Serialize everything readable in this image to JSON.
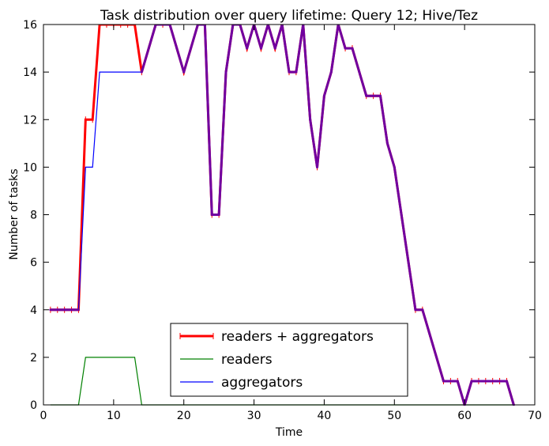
{
  "chart_data": {
    "type": "line",
    "title": "Task distribution over query lifetime: Query 12; Hive/Tez",
    "xlabel": "Time",
    "ylabel": "Number of tasks",
    "xlim": [
      0,
      70
    ],
    "ylim": [
      0,
      16
    ],
    "xticks": [
      0,
      10,
      20,
      30,
      40,
      50,
      60,
      70
    ],
    "yticks": [
      0,
      2,
      4,
      6,
      8,
      10,
      12,
      14,
      16
    ],
    "grid": false,
    "legend_position": "lower-center",
    "series": [
      {
        "name": "readers + aggregators",
        "color": "#ff0000",
        "points": [
          [
            1,
            4
          ],
          [
            2,
            4
          ],
          [
            3,
            4
          ],
          [
            4,
            4
          ],
          [
            5,
            4
          ],
          [
            6,
            12
          ],
          [
            7,
            12
          ],
          [
            8,
            16
          ],
          [
            9,
            16
          ],
          [
            10,
            16
          ],
          [
            11,
            16
          ],
          [
            12,
            16
          ],
          [
            13,
            16
          ],
          [
            14,
            14
          ],
          [
            15,
            15
          ],
          [
            16,
            16
          ],
          [
            17,
            16
          ],
          [
            18,
            16
          ],
          [
            19,
            15
          ],
          [
            20,
            14
          ],
          [
            21,
            15
          ],
          [
            22,
            16
          ],
          [
            23,
            16
          ],
          [
            24,
            8
          ],
          [
            25,
            8
          ],
          [
            26,
            14
          ],
          [
            27,
            16
          ],
          [
            28,
            16
          ],
          [
            29,
            15
          ],
          [
            30,
            16
          ],
          [
            31,
            15
          ],
          [
            32,
            16
          ],
          [
            33,
            15
          ],
          [
            34,
            16
          ],
          [
            35,
            14
          ],
          [
            36,
            14
          ],
          [
            37,
            16
          ],
          [
            38,
            12
          ],
          [
            39,
            10
          ],
          [
            40,
            13
          ],
          [
            41,
            14
          ],
          [
            42,
            16
          ],
          [
            43,
            15
          ],
          [
            44,
            15
          ],
          [
            45,
            14
          ],
          [
            46,
            13
          ],
          [
            47,
            13
          ],
          [
            48,
            13
          ],
          [
            49,
            11
          ],
          [
            50,
            10
          ],
          [
            51,
            8
          ],
          [
            52,
            6
          ],
          [
            53,
            4
          ],
          [
            54,
            4
          ],
          [
            55,
            3
          ],
          [
            56,
            2
          ],
          [
            57,
            1
          ],
          [
            58,
            1
          ],
          [
            59,
            1
          ],
          [
            60,
            0
          ],
          [
            61,
            1
          ],
          [
            62,
            1
          ],
          [
            63,
            1
          ],
          [
            64,
            1
          ],
          [
            65,
            1
          ],
          [
            66,
            1
          ],
          [
            67,
            0
          ]
        ]
      },
      {
        "name": "readers",
        "color": "#008000",
        "points": [
          [
            1,
            0
          ],
          [
            2,
            0
          ],
          [
            3,
            0
          ],
          [
            4,
            0
          ],
          [
            5,
            0
          ],
          [
            6,
            2
          ],
          [
            7,
            2
          ],
          [
            8,
            2
          ],
          [
            9,
            2
          ],
          [
            10,
            2
          ],
          [
            11,
            2
          ],
          [
            12,
            2
          ],
          [
            13,
            2
          ],
          [
            14,
            0
          ],
          [
            15,
            0
          ],
          [
            16,
            0
          ],
          [
            17,
            0
          ],
          [
            18,
            0
          ],
          [
            19,
            0
          ],
          [
            20,
            0
          ],
          [
            21,
            0
          ],
          [
            22,
            0
          ],
          [
            23,
            0
          ],
          [
            24,
            0
          ],
          [
            25,
            0
          ],
          [
            26,
            0
          ],
          [
            27,
            0
          ],
          [
            28,
            0
          ],
          [
            29,
            0
          ],
          [
            30,
            0
          ],
          [
            31,
            0
          ],
          [
            32,
            0
          ],
          [
            33,
            0
          ],
          [
            34,
            0
          ],
          [
            35,
            0
          ],
          [
            36,
            0
          ],
          [
            37,
            0
          ],
          [
            38,
            0
          ],
          [
            39,
            0
          ],
          [
            40,
            0
          ],
          [
            41,
            0
          ],
          [
            42,
            0
          ],
          [
            43,
            0
          ],
          [
            44,
            0
          ],
          [
            45,
            0
          ],
          [
            46,
            0
          ],
          [
            47,
            0
          ],
          [
            48,
            0
          ],
          [
            49,
            0
          ],
          [
            50,
            0
          ],
          [
            51,
            0
          ],
          [
            52,
            0
          ],
          [
            53,
            0
          ],
          [
            54,
            0
          ],
          [
            55,
            0
          ],
          [
            56,
            0
          ],
          [
            57,
            0
          ],
          [
            58,
            0
          ],
          [
            59,
            0
          ],
          [
            60,
            0
          ],
          [
            61,
            0
          ],
          [
            62,
            0
          ],
          [
            63,
            0
          ],
          [
            64,
            0
          ],
          [
            65,
            0
          ],
          [
            66,
            0
          ],
          [
            67,
            0
          ]
        ]
      },
      {
        "name": "aggregators",
        "color": "#0000ff",
        "points": [
          [
            1,
            4
          ],
          [
            2,
            4
          ],
          [
            3,
            4
          ],
          [
            4,
            4
          ],
          [
            5,
            4
          ],
          [
            6,
            10
          ],
          [
            7,
            10
          ],
          [
            8,
            14
          ],
          [
            9,
            14
          ],
          [
            10,
            14
          ],
          [
            11,
            14
          ],
          [
            12,
            14
          ],
          [
            13,
            14
          ],
          [
            14,
            14
          ],
          [
            15,
            15
          ],
          [
            16,
            16
          ],
          [
            17,
            16
          ],
          [
            18,
            16
          ],
          [
            19,
            15
          ],
          [
            20,
            14
          ],
          [
            21,
            15
          ],
          [
            22,
            16
          ],
          [
            23,
            16
          ],
          [
            24,
            8
          ],
          [
            25,
            8
          ],
          [
            26,
            14
          ],
          [
            27,
            16
          ],
          [
            28,
            16
          ],
          [
            29,
            15
          ],
          [
            30,
            16
          ],
          [
            31,
            15
          ],
          [
            32,
            16
          ],
          [
            33,
            15
          ],
          [
            34,
            16
          ],
          [
            35,
            14
          ],
          [
            36,
            14
          ],
          [
            37,
            16
          ],
          [
            38,
            12
          ],
          [
            39,
            10
          ],
          [
            40,
            13
          ],
          [
            41,
            14
          ],
          [
            42,
            16
          ],
          [
            43,
            15
          ],
          [
            44,
            15
          ],
          [
            45,
            14
          ],
          [
            46,
            13
          ],
          [
            47,
            13
          ],
          [
            48,
            13
          ],
          [
            49,
            11
          ],
          [
            50,
            10
          ],
          [
            51,
            8
          ],
          [
            52,
            6
          ],
          [
            53,
            4
          ],
          [
            54,
            4
          ],
          [
            55,
            3
          ],
          [
            56,
            2
          ],
          [
            57,
            1
          ],
          [
            58,
            1
          ],
          [
            59,
            1
          ],
          [
            60,
            0
          ],
          [
            61,
            1
          ],
          [
            62,
            1
          ],
          [
            63,
            1
          ],
          [
            64,
            1
          ],
          [
            65,
            1
          ],
          [
            66,
            1
          ],
          [
            67,
            0
          ]
        ]
      }
    ]
  }
}
